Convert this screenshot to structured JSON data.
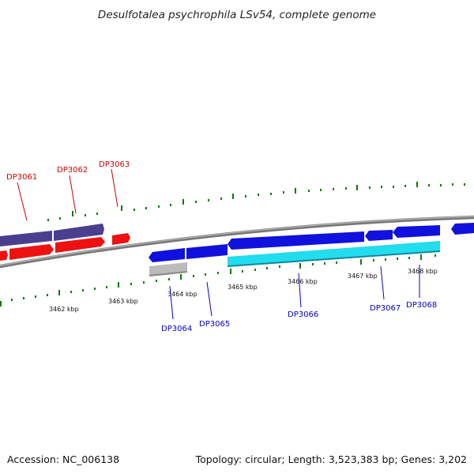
{
  "header": {
    "title": "Desulfotalea psychrophila LSv54, complete genome"
  },
  "footer": {
    "accession": "Accession: NC_006138",
    "summary": "Topology: circular; Length: 3,523,383 bp; Genes: 3,202"
  },
  "ticks": [
    "3462 kbp",
    "3463 kbp",
    "3464 kbp",
    "3465 kbp",
    "3466 kbp",
    "3467 kbp",
    "3468 kbp"
  ],
  "gene_labels": {
    "dp3061": "DP3061",
    "dp3062": "DP3062",
    "dp3063": "DP3063",
    "dp3064": "DP3064",
    "dp3065": "DP3065",
    "dp3066": "DP3066",
    "dp3067": "DP3067",
    "dp3068": "DP3068"
  },
  "colors": {
    "forward_gene": "#ee1111",
    "forward_gene_other": "#4a3f8f",
    "reverse_gene": "#1111dd",
    "highlight_gene": "#22ddee",
    "pseudo_gene": "#bbbbbb",
    "backbone": "#888888",
    "tick": "#117711",
    "label_red": "#cc0000",
    "label_blue": "#0000cc"
  }
}
